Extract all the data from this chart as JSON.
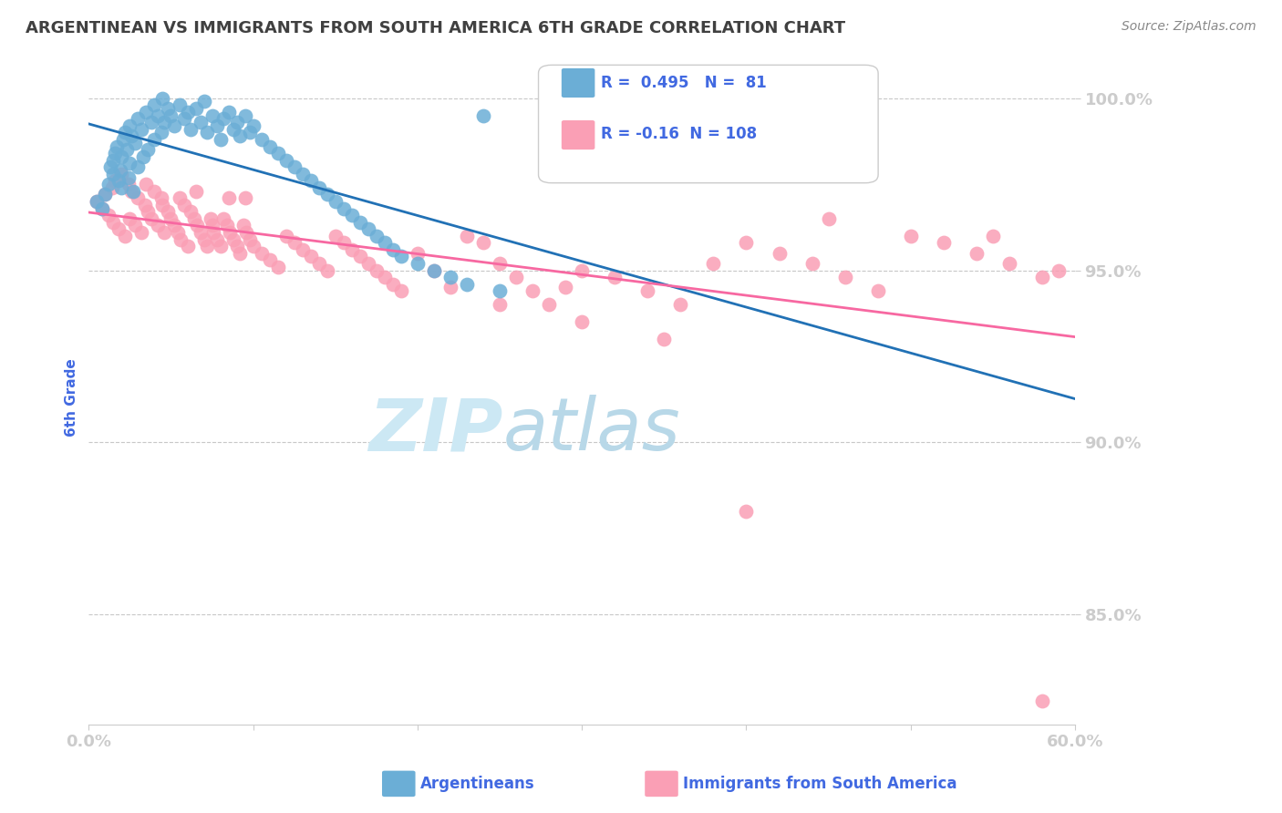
{
  "title": "ARGENTINEAN VS IMMIGRANTS FROM SOUTH AMERICA 6TH GRADE CORRELATION CHART",
  "source": "Source: ZipAtlas.com",
  "xlabel_blue": "Argentineans",
  "xlabel_pink": "Immigrants from South America",
  "ylabel": "6th Grade",
  "x_min": 0.0,
  "x_max": 0.6,
  "y_min": 0.818,
  "y_max": 1.008,
  "yticks": [
    0.85,
    0.9,
    0.95,
    1.0
  ],
  "ytick_labels": [
    "85.0%",
    "90.0%",
    "95.0%",
    "100.0%"
  ],
  "xticks": [
    0.0,
    0.1,
    0.2,
    0.3,
    0.4,
    0.5,
    0.6
  ],
  "xtick_labels": [
    "0.0%",
    "",
    "",
    "",
    "",
    "",
    "60.0%"
  ],
  "R_blue": 0.495,
  "N_blue": 81,
  "R_pink": -0.16,
  "N_pink": 108,
  "color_blue": "#6baed6",
  "color_pink": "#fa9fb5",
  "color_trendline_blue": "#2171b5",
  "color_trendline_pink": "#f768a1",
  "color_title": "#404040",
  "color_axis_labels": "#4169e1",
  "color_grid": "#c8c8c8",
  "watermark_color": "#cce8f4",
  "blue_scatter_x": [
    0.005,
    0.008,
    0.01,
    0.012,
    0.013,
    0.015,
    0.015,
    0.016,
    0.017,
    0.018,
    0.019,
    0.02,
    0.02,
    0.021,
    0.022,
    0.023,
    0.024,
    0.025,
    0.025,
    0.026,
    0.027,
    0.028,
    0.03,
    0.03,
    0.032,
    0.033,
    0.035,
    0.036,
    0.038,
    0.04,
    0.04,
    0.042,
    0.044,
    0.045,
    0.046,
    0.048,
    0.05,
    0.052,
    0.055,
    0.058,
    0.06,
    0.062,
    0.065,
    0.068,
    0.07,
    0.072,
    0.075,
    0.078,
    0.08,
    0.082,
    0.085,
    0.088,
    0.09,
    0.092,
    0.095,
    0.098,
    0.1,
    0.105,
    0.11,
    0.115,
    0.12,
    0.125,
    0.13,
    0.135,
    0.14,
    0.145,
    0.15,
    0.155,
    0.16,
    0.165,
    0.17,
    0.175,
    0.18,
    0.185,
    0.19,
    0.2,
    0.21,
    0.22,
    0.23,
    0.24,
    0.25
  ],
  "blue_scatter_y": [
    0.97,
    0.968,
    0.972,
    0.975,
    0.98,
    0.982,
    0.978,
    0.984,
    0.986,
    0.976,
    0.979,
    0.983,
    0.974,
    0.988,
    0.99,
    0.985,
    0.977,
    0.992,
    0.981,
    0.989,
    0.973,
    0.987,
    0.994,
    0.98,
    0.991,
    0.983,
    0.996,
    0.985,
    0.993,
    0.998,
    0.988,
    0.995,
    0.99,
    1.0,
    0.993,
    0.997,
    0.995,
    0.992,
    0.998,
    0.994,
    0.996,
    0.991,
    0.997,
    0.993,
    0.999,
    0.99,
    0.995,
    0.992,
    0.988,
    0.994,
    0.996,
    0.991,
    0.993,
    0.989,
    0.995,
    0.99,
    0.992,
    0.988,
    0.986,
    0.984,
    0.982,
    0.98,
    0.978,
    0.976,
    0.974,
    0.972,
    0.97,
    0.968,
    0.966,
    0.964,
    0.962,
    0.96,
    0.958,
    0.956,
    0.954,
    0.952,
    0.95,
    0.948,
    0.946,
    0.995,
    0.944
  ],
  "pink_scatter_x": [
    0.005,
    0.008,
    0.01,
    0.012,
    0.014,
    0.015,
    0.016,
    0.018,
    0.02,
    0.022,
    0.024,
    0.025,
    0.026,
    0.028,
    0.03,
    0.032,
    0.034,
    0.035,
    0.036,
    0.038,
    0.04,
    0.042,
    0.044,
    0.045,
    0.046,
    0.048,
    0.05,
    0.052,
    0.054,
    0.055,
    0.056,
    0.058,
    0.06,
    0.062,
    0.064,
    0.065,
    0.066,
    0.068,
    0.07,
    0.072,
    0.074,
    0.075,
    0.076,
    0.078,
    0.08,
    0.082,
    0.084,
    0.085,
    0.086,
    0.088,
    0.09,
    0.092,
    0.094,
    0.095,
    0.096,
    0.098,
    0.1,
    0.105,
    0.11,
    0.115,
    0.12,
    0.125,
    0.13,
    0.135,
    0.14,
    0.145,
    0.15,
    0.155,
    0.16,
    0.165,
    0.17,
    0.175,
    0.18,
    0.185,
    0.19,
    0.2,
    0.21,
    0.22,
    0.23,
    0.24,
    0.25,
    0.26,
    0.27,
    0.28,
    0.29,
    0.3,
    0.32,
    0.34,
    0.36,
    0.38,
    0.4,
    0.42,
    0.44,
    0.46,
    0.48,
    0.5,
    0.52,
    0.54,
    0.56,
    0.58,
    0.4,
    0.35,
    0.45,
    0.3,
    0.25,
    0.55,
    0.58,
    0.59
  ],
  "pink_scatter_y": [
    0.97,
    0.968,
    0.972,
    0.966,
    0.974,
    0.964,
    0.976,
    0.962,
    0.978,
    0.96,
    0.975,
    0.965,
    0.973,
    0.963,
    0.971,
    0.961,
    0.969,
    0.975,
    0.967,
    0.965,
    0.973,
    0.963,
    0.971,
    0.969,
    0.961,
    0.967,
    0.965,
    0.963,
    0.961,
    0.971,
    0.959,
    0.969,
    0.957,
    0.967,
    0.965,
    0.973,
    0.963,
    0.961,
    0.959,
    0.957,
    0.965,
    0.963,
    0.961,
    0.959,
    0.957,
    0.965,
    0.963,
    0.971,
    0.961,
    0.959,
    0.957,
    0.955,
    0.963,
    0.971,
    0.961,
    0.959,
    0.957,
    0.955,
    0.953,
    0.951,
    0.96,
    0.958,
    0.956,
    0.954,
    0.952,
    0.95,
    0.96,
    0.958,
    0.956,
    0.954,
    0.952,
    0.95,
    0.948,
    0.946,
    0.944,
    0.955,
    0.95,
    0.945,
    0.96,
    0.958,
    0.952,
    0.948,
    0.944,
    0.94,
    0.945,
    0.95,
    0.948,
    0.944,
    0.94,
    0.952,
    0.958,
    0.955,
    0.952,
    0.948,
    0.944,
    0.96,
    0.958,
    0.955,
    0.952,
    0.948,
    0.88,
    0.93,
    0.965,
    0.935,
    0.94,
    0.96,
    0.825,
    0.95
  ]
}
